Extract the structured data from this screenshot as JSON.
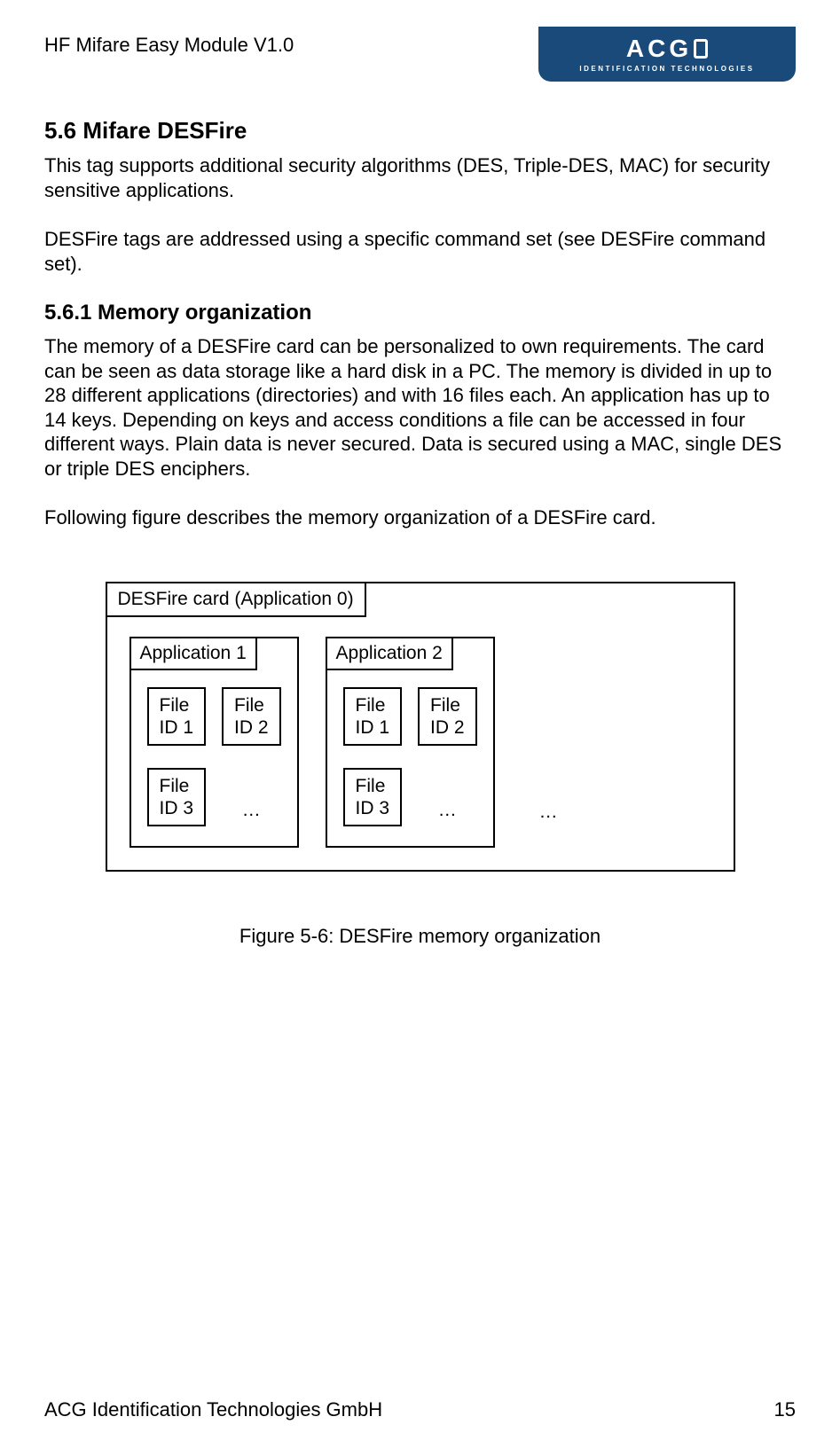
{
  "header": {
    "doc_title": "HF Mifare Easy Module V1.0",
    "logo_main": "ACG",
    "logo_sub": "IDENTIFICATION TECHNOLOGIES"
  },
  "section": {
    "heading": "5.6 Mifare DESFire",
    "p1": "This tag supports additional security algorithms (DES, Triple-DES, MAC) for security sensitive applications.",
    "p2": "DESFire tags are addressed using a specific command set (see DESFire command set).",
    "sub_heading": "5.6.1   Memory organization",
    "p3": "The memory of a DESFire card can be personalized to own requirements. The card can be seen as data storage like a hard disk in a PC. The memory is divided in up to 28 different applications (directories) and with 16 files each. An application has up to 14 keys. Depending on keys and access conditions a file can be accessed in four different ways. Plain data is never secured. Data is secured using a MAC, single DES or triple DES enciphers.",
    "p4": "Following figure describes the memory organization of a DESFire card."
  },
  "diagram": {
    "type": "tree",
    "outer_label": "DESFire card (Application 0)",
    "border_color": "#000000",
    "background_color": "#ffffff",
    "font_size": 21,
    "line_width": 2,
    "apps": [
      {
        "label": "Application 1",
        "files": [
          {
            "line1": "File",
            "line2": "ID 1"
          },
          {
            "line1": "File",
            "line2": "ID 2"
          },
          {
            "line1": "File",
            "line2": "ID 3"
          }
        ],
        "ellipsis": "…"
      },
      {
        "label": "Application 2",
        "files": [
          {
            "line1": "File",
            "line2": "ID 1"
          },
          {
            "line1": "File",
            "line2": "ID 2"
          },
          {
            "line1": "File",
            "line2": "ID 3"
          }
        ],
        "ellipsis": "…"
      }
    ],
    "outer_ellipsis": "…"
  },
  "figure_caption": "Figure 5-6: DESFire memory organization",
  "footer": {
    "company": "ACG Identification Technologies GmbH",
    "page": "15"
  },
  "colors": {
    "text": "#000000",
    "logo_bg": "#1a4a7a",
    "logo_text": "#ffffff",
    "page_bg": "#ffffff"
  }
}
